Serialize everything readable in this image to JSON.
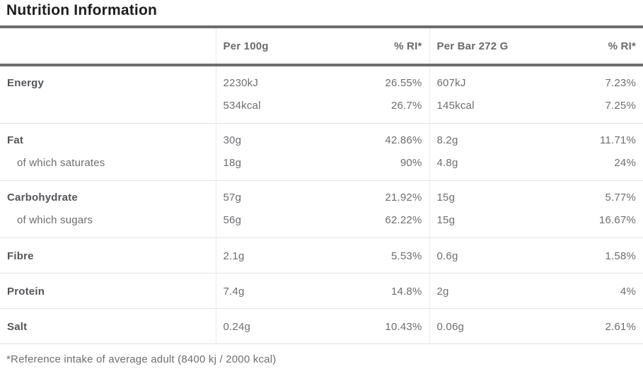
{
  "title": "Nutrition Information",
  "table": {
    "headers": {
      "label": "",
      "per100": "Per 100g",
      "per100_ri": "% RI*",
      "perbar": "Per Bar 272 G",
      "perbar_ri": "% RI*"
    },
    "rows": [
      {
        "label": "Energy",
        "style": "bold",
        "group_start": true,
        "per100": "2230kJ",
        "per100_ri": "26.55%",
        "perbar": "607kJ",
        "perbar_ri": "7.23%"
      },
      {
        "label": "",
        "style": "plain",
        "group_start": false,
        "per100": "534kcal",
        "per100_ri": "26.7%",
        "perbar": "145kcal",
        "perbar_ri": "7.25%"
      },
      {
        "label": "Fat",
        "style": "bold",
        "group_start": true,
        "per100": "30g",
        "per100_ri": "42.86%",
        "perbar": "8.2g",
        "perbar_ri": "11.71%"
      },
      {
        "label": "of which saturates",
        "style": "indent",
        "group_start": false,
        "per100": "18g",
        "per100_ri": "90%",
        "perbar": "4.8g",
        "perbar_ri": "24%"
      },
      {
        "label": "Carbohydrate",
        "style": "bold",
        "group_start": true,
        "per100": "57g",
        "per100_ri": "21.92%",
        "perbar": "15g",
        "perbar_ri": "5.77%"
      },
      {
        "label": "of which sugars",
        "style": "indent",
        "group_start": false,
        "per100": "56g",
        "per100_ri": "62.22%",
        "perbar": "15g",
        "perbar_ri": "16.67%"
      },
      {
        "label": "Fibre",
        "style": "bold",
        "group_start": true,
        "per100": "2.1g",
        "per100_ri": "5.53%",
        "perbar": "0.6g",
        "perbar_ri": "1.58%"
      },
      {
        "label": "Protein",
        "style": "bold",
        "group_start": true,
        "per100": "7.4g",
        "per100_ri": "14.8%",
        "perbar": "2g",
        "perbar_ri": "4%"
      },
      {
        "label": "Salt",
        "style": "bold",
        "group_start": true,
        "per100": "0.24g",
        "per100_ri": "10.43%",
        "perbar": "0.06g",
        "perbar_ri": "2.61%"
      }
    ]
  },
  "footnote": "*Reference intake of average adult (8400 kj / 2000 kcal)",
  "colors": {
    "title_text": "#1d1d1d",
    "heavy_border": "#6e6e6e",
    "row_border": "#e4e4e4",
    "column_divider": "#ececec",
    "label_text": "#55565a",
    "value_text": "#6d6e71",
    "background": "#ffffff"
  }
}
